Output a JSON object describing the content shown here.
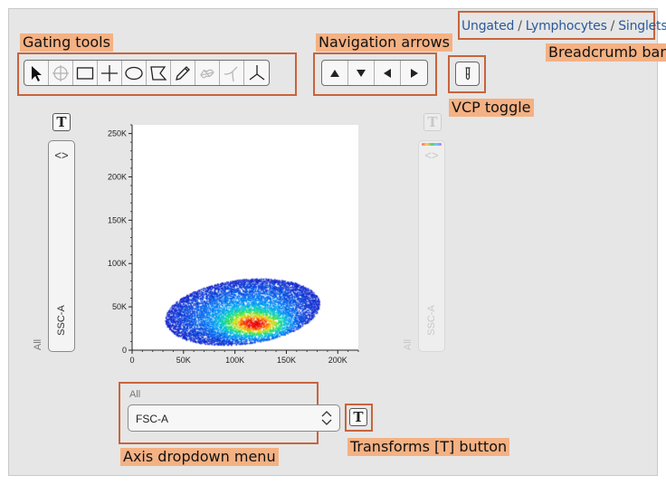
{
  "annotations": {
    "gating_tools": "Gating tools",
    "navigation_arrows": "Navigation arrows",
    "breadcrumb_bar": "Breadcrumb bar",
    "vcp_toggle": "VCP toggle",
    "axis_dropdown": "Axis dropdown menu",
    "transforms_button": "Transforms [T] button"
  },
  "breadcrumb": {
    "items": [
      "Ungated",
      "Lymphocytes",
      "Singlets"
    ],
    "separator": "/"
  },
  "gating_tools": [
    {
      "name": "pointer",
      "enabled": true
    },
    {
      "name": "quadrant-crosshair",
      "enabled": false
    },
    {
      "name": "rectangle",
      "enabled": true
    },
    {
      "name": "quadrant",
      "enabled": true
    },
    {
      "name": "ellipse",
      "enabled": true
    },
    {
      "name": "polygon",
      "enabled": true
    },
    {
      "name": "freehand-pencil",
      "enabled": true
    },
    {
      "name": "spider-web",
      "enabled": false
    },
    {
      "name": "curly-quadrant",
      "enabled": false
    },
    {
      "name": "spider",
      "enabled": true
    }
  ],
  "transforms": {
    "label": "T"
  },
  "y_axis": {
    "param": "SSC-A",
    "population": "All",
    "chevron": "<>"
  },
  "y2_axis": {
    "param": "SSC-A",
    "population": "All",
    "chevron": "<>"
  },
  "x_axis": {
    "param": "FSC-A",
    "population": "All"
  },
  "chart_data": {
    "type": "scatter",
    "style": "density heatmap (pseudocolor blue-green-yellow-red)",
    "x_param": "FSC-A",
    "y_param": "SSC-A",
    "xlim": [
      0,
      220000
    ],
    "ylim": [
      0,
      260000
    ],
    "x_ticks": [
      "0",
      "50K",
      "100K",
      "150K",
      "200K"
    ],
    "y_ticks": [
      "0",
      "50K",
      "100K",
      "150K",
      "200K",
      "250K"
    ],
    "cluster": {
      "x_range": [
        32000,
        182000
      ],
      "y_range": [
        5000,
        80000
      ],
      "peak_x": 120000,
      "peak_y": 30000
    }
  }
}
